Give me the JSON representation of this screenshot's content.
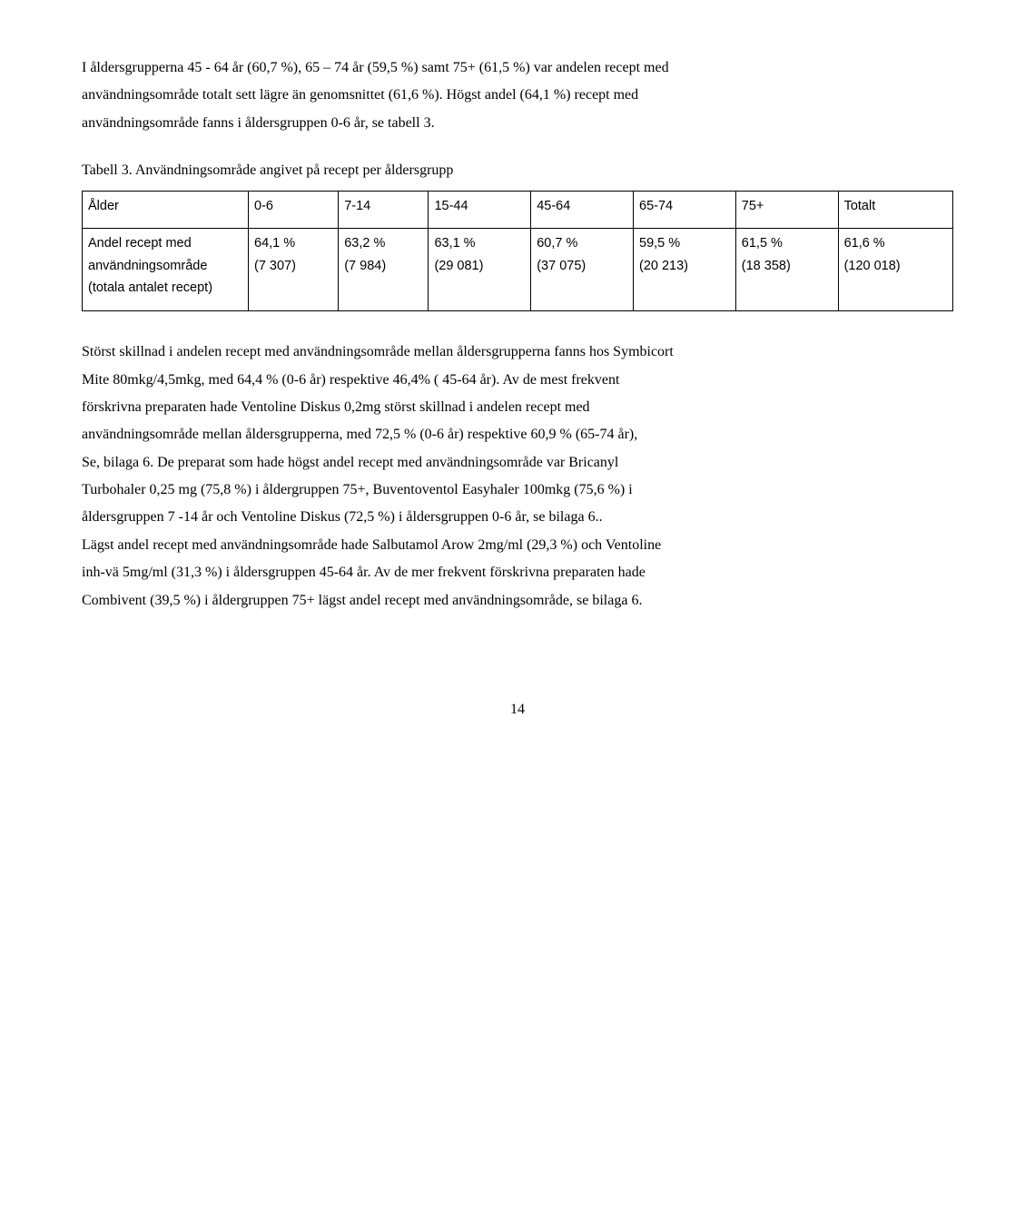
{
  "paragraph1_lines": [
    "I åldersgrupperna 45 - 64 år (60,7 %), 65 – 74 år (59,5 %) samt 75+ (61,5 %) var andelen recept med",
    "användningsområde totalt sett lägre än genomsnittet (61,6 %). Högst andel (64,1 %) recept med",
    "användningsområde fanns i åldersgruppen 0-6 år, se tabell 3."
  ],
  "table_caption": "Tabell 3. Användningsområde angivet på recept per åldersgrupp",
  "table": {
    "header": [
      "Ålder",
      "0-6",
      "7-14",
      "15-44",
      "45-64",
      "65-74",
      "75+",
      "Totalt"
    ],
    "row_label_lines": [
      "Andel recept med",
      "användningsområde",
      "(totala antalet recept)"
    ],
    "cells": [
      [
        "64,1 %",
        "(7 307)"
      ],
      [
        "63,2 %",
        "(7 984)"
      ],
      [
        "63,1 %",
        "(29 081)"
      ],
      [
        "60,7 %",
        "(37 075)"
      ],
      [
        "59,5 %",
        "(20 213)"
      ],
      [
        "61,5 %",
        "(18 358)"
      ],
      [
        "61,6 %",
        "(120 018)"
      ]
    ]
  },
  "paragraph2_lines": [
    "Störst skillnad i andelen recept med användningsområde mellan åldersgrupperna fanns hos Symbicort",
    "Mite 80mkg/4,5mkg, med 64,4 % (0-6 år) respektive 46,4% ( 45-64 år). Av de mest frekvent",
    "förskrivna preparaten hade Ventoline Diskus 0,2mg störst skillnad i andelen recept med",
    "användningsområde mellan åldersgrupperna, med 72,5 % (0-6 år) respektive 60,9 % (65-74 år),",
    "Se,  bilaga 6. De preparat som hade högst andel recept med användningsområde var Bricanyl",
    "Turbohaler 0,25 mg (75,8 %) i åldergruppen 75+, Buventoventol Easyhaler 100mkg (75,6 %) i",
    "åldersgruppen 7 -14 år och Ventoline Diskus (72,5 %) i åldersgruppen 0-6 år, se bilaga 6..",
    "Lägst andel recept med användningsområde hade Salbutamol Arow 2mg/ml (29,3 %) och Ventoline",
    "inh-vä 5mg/ml (31,3 %) i åldersgruppen 45-64 år. Av de mer frekvent förskrivna preparaten hade",
    "Combivent (39,5 %) i åldergruppen 75+ lägst andel recept med användningsområde, se bilaga 6."
  ],
  "page_number": "14"
}
